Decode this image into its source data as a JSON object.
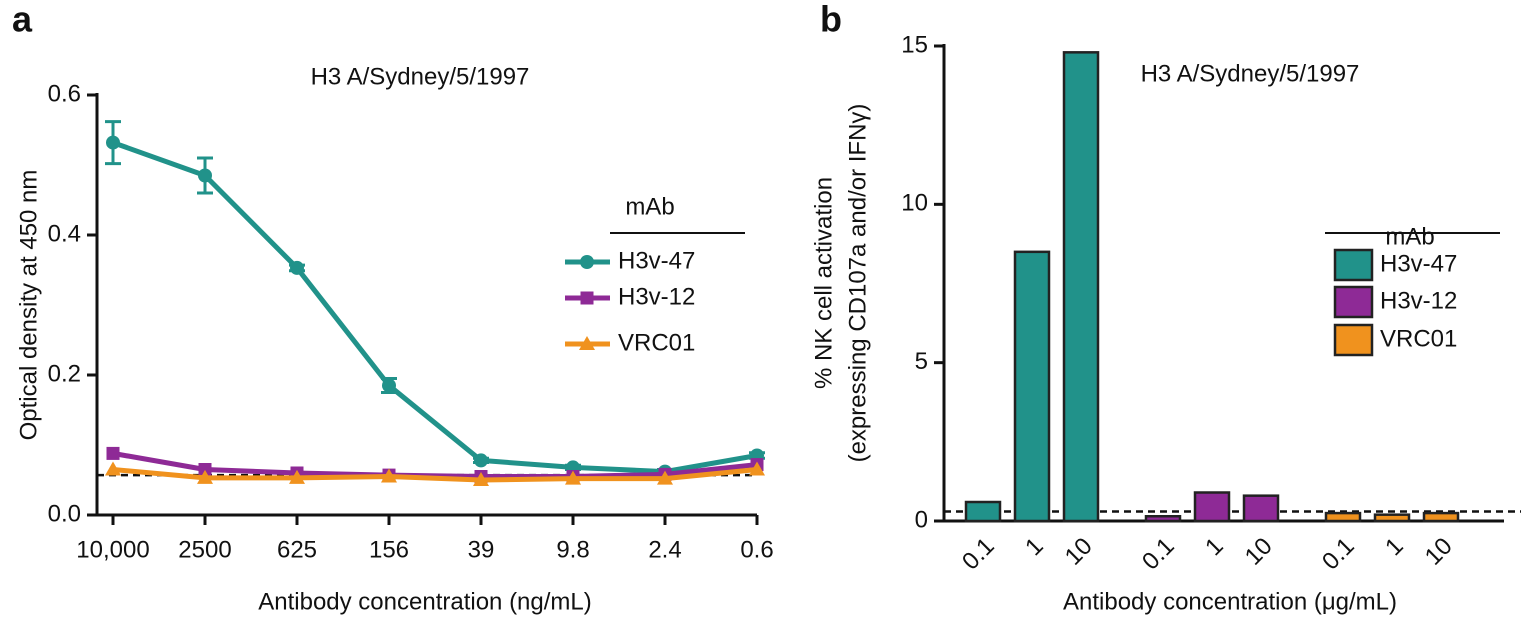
{
  "chart_data": [
    {
      "type": "line",
      "panel": "a",
      "title": "H3 A/Sydney/5/1997",
      "xlabel": "Antibody concentration (ng/mL)",
      "ylabel": "Optical density at 450 nm",
      "categories": [
        "10,000",
        "2500",
        "625",
        "156",
        "39",
        "9.8",
        "2.4",
        "0.6"
      ],
      "series": [
        {
          "name": "H3v-47",
          "color": "#21928a",
          "values": [
            0.532,
            0.485,
            0.353,
            0.185,
            0.078,
            0.068,
            0.062,
            0.085
          ],
          "errors": [
            0.03,
            0.025,
            0.004,
            0.01,
            0.003,
            0.003,
            0.003,
            0.004
          ]
        },
        {
          "name": "H3v-12",
          "color": "#8e2a96",
          "values": [
            0.088,
            0.065,
            0.06,
            0.057,
            0.055,
            0.055,
            0.058,
            0.072
          ]
        },
        {
          "name": "VRC01",
          "color": "#f0921e",
          "values": [
            0.065,
            0.053,
            0.053,
            0.055,
            0.05,
            0.052,
            0.052,
            0.065
          ]
        }
      ],
      "legend_title": "mAb",
      "hline": 0.057,
      "ylim": [
        0,
        0.6
      ],
      "yticks": [
        {
          "value": 0,
          "label": "0.0"
        },
        0.2,
        0.4,
        0.6
      ]
    },
    {
      "type": "bar",
      "panel": "b",
      "title": "H3 A/Sydney/5/1997",
      "xlabel": "Antibody concentration (μg/mL)",
      "ylabel": [
        "% NK cell activation",
        "(expressing CD107a and/or IFNγ)"
      ],
      "categories": [
        "0.1",
        "1",
        "10"
      ],
      "series": [
        {
          "name": "H3v-47",
          "color": "#21928a",
          "values": [
            0.6,
            8.5,
            14.8
          ]
        },
        {
          "name": "H3v-12",
          "color": "#8e2a96",
          "values": [
            0.15,
            0.9,
            0.8
          ]
        },
        {
          "name": "VRC01",
          "color": "#f0921e",
          "values": [
            0.25,
            0.2,
            0.25
          ]
        }
      ],
      "legend_title": "mAb",
      "hline": 0.3,
      "ylim": [
        0,
        15
      ],
      "yticks": [
        0,
        5,
        10,
        15
      ]
    }
  ]
}
